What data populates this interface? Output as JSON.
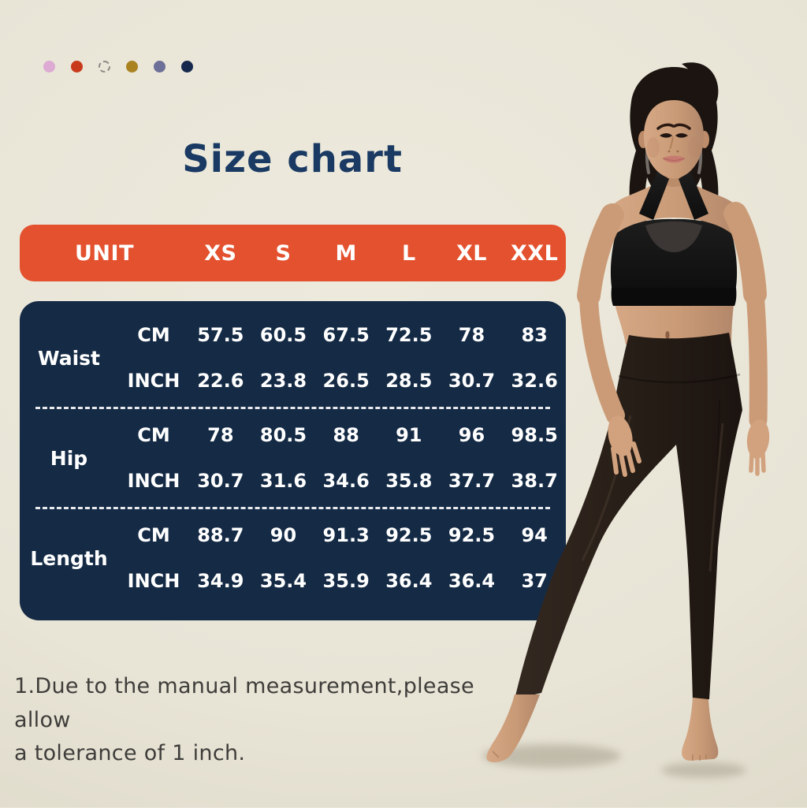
{
  "page": {
    "title": "Size chart",
    "footnote_line1": "1.Due to the manual measurement,please allow",
    "footnote_line2": "a tolerance of 1 inch."
  },
  "palette": {
    "dots": [
      {
        "name": "swatch-pink-dot",
        "color": "#dcaad3",
        "style": "solid"
      },
      {
        "name": "swatch-red-dot",
        "color": "#c83a1b",
        "style": "solid"
      },
      {
        "name": "swatch-outline-dot",
        "color": "",
        "style": "dashed"
      },
      {
        "name": "swatch-gold-dot",
        "color": "#aa8220",
        "style": "solid"
      },
      {
        "name": "swatch-violet-dot",
        "color": "#6c6f97",
        "style": "solid"
      },
      {
        "name": "swatch-navy-dot",
        "color": "#16294d",
        "style": "solid"
      }
    ]
  },
  "size_table": {
    "header": [
      "UNIT",
      "XS",
      "S",
      "M",
      "L",
      "XL",
      "XXL"
    ],
    "sections": [
      {
        "label": "Waist",
        "rows": [
          {
            "unit": "CM",
            "values": [
              "57.5",
              "60.5",
              "67.5",
              "72.5",
              "78",
              "83"
            ]
          },
          {
            "unit": "INCH",
            "values": [
              "22.6",
              "23.8",
              "26.5",
              "28.5",
              "30.7",
              "32.6"
            ]
          }
        ]
      },
      {
        "label": "Hip",
        "rows": [
          {
            "unit": "CM",
            "values": [
              "78",
              "80.5",
              "88",
              "91",
              "96",
              "98.5"
            ]
          },
          {
            "unit": "INCH",
            "values": [
              "30.7",
              "31.6",
              "34.6",
              "35.8",
              "37.7",
              "38.7"
            ]
          }
        ]
      },
      {
        "label": "Length",
        "rows": [
          {
            "unit": "CM",
            "values": [
              "88.7",
              "90",
              "91.3",
              "92.5",
              "92.5",
              "94"
            ]
          },
          {
            "unit": "INCH",
            "values": [
              "34.9",
              "35.4",
              "35.9",
              "36.4",
              "36.4",
              "37"
            ]
          }
        ]
      }
    ]
  },
  "chart_data": {
    "type": "table",
    "title": "Size chart",
    "columns": [
      "UNIT",
      "XS",
      "S",
      "M",
      "L",
      "XL",
      "XXL"
    ],
    "rows": [
      {
        "measure": "Waist",
        "unit": "CM",
        "values": [
          57.5,
          60.5,
          67.5,
          72.5,
          78,
          83
        ]
      },
      {
        "measure": "Waist",
        "unit": "INCH",
        "values": [
          22.6,
          23.8,
          26.5,
          28.5,
          30.7,
          32.6
        ]
      },
      {
        "measure": "Hip",
        "unit": "CM",
        "values": [
          78,
          80.5,
          88,
          91,
          96,
          98.5
        ]
      },
      {
        "measure": "Hip",
        "unit": "INCH",
        "values": [
          30.7,
          31.6,
          34.6,
          35.8,
          37.7,
          38.7
        ]
      },
      {
        "measure": "Length",
        "unit": "CM",
        "values": [
          88.7,
          90,
          91.3,
          92.5,
          92.5,
          94
        ]
      },
      {
        "measure": "Length",
        "unit": "INCH",
        "values": [
          34.9,
          35.4,
          35.9,
          36.4,
          36.4,
          37
        ]
      }
    ],
    "footnote": "1.Due to the manual measurement,please allow a tolerance of 1 inch."
  },
  "figure": {
    "alt": "model wearing black sports bra and dark leggings"
  },
  "colors": {
    "background": "#e9e5d8",
    "header_bg": "#e4512e",
    "table_bg": "#142a45",
    "title_text": "#1a3a63",
    "table_text": "#ffffff",
    "footnote_text": "#3e3d3a"
  }
}
